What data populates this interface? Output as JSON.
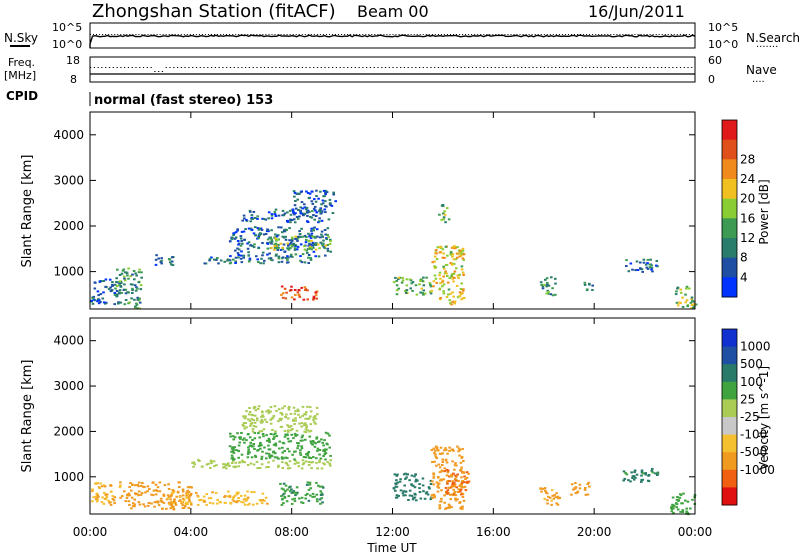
{
  "header": {
    "title": "Zhongshan Station (fitACF)",
    "beam": "Beam 00",
    "date": "16/Jun/2011"
  },
  "nsky_panel": {
    "left_label": "N.Sky",
    "left_ticks": [
      "10^5",
      "10^0"
    ],
    "right_ticks": [
      "10^5",
      "10^0"
    ],
    "right_label": "N.Search",
    "right_legend": "......."
  },
  "freq_panel": {
    "left_label_1": "Freq.",
    "left_label_2": "[MHz]",
    "left_ticks": [
      "18",
      "8"
    ],
    "right_ticks": [
      "60",
      "0"
    ],
    "right_label": "Nave",
    "right_legend": "...."
  },
  "cpid": {
    "label": "CPID",
    "text": "normal (fast stereo) 153"
  },
  "colors": {
    "power_scale": [
      "#0033ff",
      "#1f4fa3",
      "#2a7d6a",
      "#3c9a52",
      "#8acc33",
      "#f0c020",
      "#f08a1a",
      "#e0501a",
      "#e01a1a"
    ],
    "velocity_scale": [
      "#e01010",
      "#f06010",
      "#f09a20",
      "#f5c030",
      "#c8c8c8",
      "#aacc55",
      "#3fa33f",
      "#2a7a6a",
      "#1f4fa3",
      "#1030d0"
    ]
  },
  "chart_data": [
    {
      "type": "heatmap",
      "name": "power",
      "ylabel": "Slant Range [km]",
      "y_ticks": [
        "1000",
        "2000",
        "3000",
        "4000"
      ],
      "ylim": [
        180,
        4500
      ],
      "x_ticks": [
        "00:00",
        "04:00",
        "08:00",
        "12:00",
        "16:00",
        "20:00",
        "00:00"
      ],
      "colorbar_label": "Power [dB]",
      "colorbar_ticks": [
        "4",
        "8",
        "12",
        "16",
        "20",
        "24",
        "28"
      ],
      "clim": [
        0,
        30
      ],
      "regions": [
        {
          "t0": 0.0,
          "t1": 1.2,
          "r0": 300,
          "r1": 900,
          "value": 6
        },
        {
          "t0": 1.0,
          "t1": 2.0,
          "r0": 200,
          "r1": 1100,
          "value": 10
        },
        {
          "t0": 2.5,
          "t1": 3.3,
          "r0": 1150,
          "r1": 1400,
          "value": 6
        },
        {
          "t0": 4.5,
          "t1": 9.0,
          "r0": 1200,
          "r1": 1350,
          "value": 8
        },
        {
          "t0": 5.5,
          "t1": 9.5,
          "r0": 1350,
          "r1": 2000,
          "value": 6
        },
        {
          "t0": 7.0,
          "t1": 9.5,
          "r0": 1500,
          "r1": 1800,
          "value": 14
        },
        {
          "t0": 7.5,
          "t1": 9.0,
          "r0": 400,
          "r1": 700,
          "value": 26
        },
        {
          "t0": 6.0,
          "t1": 9.5,
          "r0": 2100,
          "r1": 2400,
          "value": 6
        },
        {
          "t0": 8.0,
          "t1": 9.7,
          "r0": 2300,
          "r1": 2800,
          "value": 5
        },
        {
          "t0": 12.0,
          "t1": 13.5,
          "r0": 500,
          "r1": 900,
          "value": 12
        },
        {
          "t0": 13.5,
          "t1": 14.8,
          "r0": 300,
          "r1": 1600,
          "value": 18
        },
        {
          "t0": 13.8,
          "t1": 14.2,
          "r0": 2100,
          "r1": 2500,
          "value": 14
        },
        {
          "t0": 17.8,
          "t1": 18.5,
          "r0": 500,
          "r1": 900,
          "value": 10
        },
        {
          "t0": 19.5,
          "t1": 20.0,
          "r0": 600,
          "r1": 800,
          "value": 8
        },
        {
          "t0": 21.2,
          "t1": 22.5,
          "r0": 1000,
          "r1": 1300,
          "value": 7
        },
        {
          "t0": 23.2,
          "t1": 24.0,
          "r0": 200,
          "r1": 700,
          "value": 14
        }
      ]
    },
    {
      "type": "heatmap",
      "name": "velocity",
      "ylabel": "Slant Range [km]",
      "y_ticks": [
        "1000",
        "2000",
        "3000",
        "4000"
      ],
      "ylim": [
        180,
        4500
      ],
      "x_ticks": [
        "00:00",
        "04:00",
        "08:00",
        "12:00",
        "16:00",
        "20:00",
        "00:00"
      ],
      "xlabel": "Time UT",
      "colorbar_label": "Velocity [m s^-1]",
      "colorbar_ticks": [
        "1000",
        "500",
        "100",
        "25",
        "-25",
        "-100",
        "-500",
        "-1000"
      ],
      "regions": [
        {
          "t0": 0.0,
          "t1": 1.3,
          "r0": 400,
          "r1": 900,
          "value": -100
        },
        {
          "t0": 1.3,
          "t1": 4.0,
          "r0": 300,
          "r1": 900,
          "value": -300
        },
        {
          "t0": 3.0,
          "t1": 7.0,
          "r0": 400,
          "r1": 700,
          "value": -80
        },
        {
          "t0": 4.0,
          "t1": 9.5,
          "r0": 1200,
          "r1": 1400,
          "value": 0
        },
        {
          "t0": 5.5,
          "t1": 9.5,
          "r0": 1400,
          "r1": 2000,
          "value": 30
        },
        {
          "t0": 6.0,
          "t1": 9.0,
          "r0": 2000,
          "r1": 2600,
          "value": 0
        },
        {
          "t0": 7.5,
          "t1": 9.2,
          "r0": 400,
          "r1": 900,
          "value": 80
        },
        {
          "t0": 12.0,
          "t1": 13.5,
          "r0": 500,
          "r1": 1100,
          "value": 200
        },
        {
          "t0": 13.5,
          "t1": 14.8,
          "r0": 300,
          "r1": 1700,
          "value": -200
        },
        {
          "t0": 14.0,
          "t1": 15.0,
          "r0": 600,
          "r1": 1200,
          "value": -600
        },
        {
          "t0": 17.8,
          "t1": 18.6,
          "r0": 400,
          "r1": 800,
          "value": -150
        },
        {
          "t0": 19.0,
          "t1": 19.8,
          "r0": 600,
          "r1": 900,
          "value": -150
        },
        {
          "t0": 21.0,
          "t1": 22.5,
          "r0": 900,
          "r1": 1200,
          "value": 150
        },
        {
          "t0": 23.0,
          "t1": 24.0,
          "r0": 200,
          "r1": 700,
          "value": 40
        }
      ]
    }
  ]
}
